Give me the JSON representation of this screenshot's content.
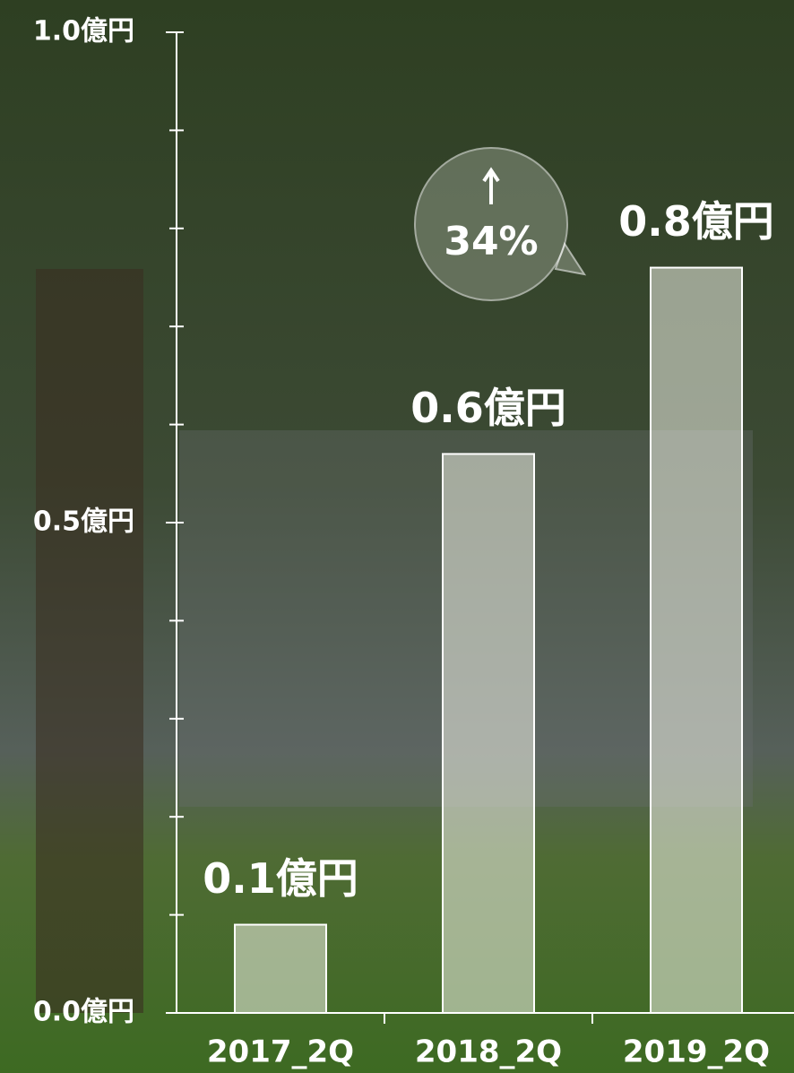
{
  "chart_data": {
    "type": "bar",
    "categories": [
      "2017_2Q",
      "2018_2Q",
      "2019_2Q"
    ],
    "values": [
      0.09,
      0.57,
      0.76
    ],
    "value_labels": [
      "0.1億円",
      "0.6億円",
      "0.8億円"
    ],
    "color": "#eef0e6",
    "ylim": [
      0,
      1.0
    ],
    "yticks": [
      {
        "value": 0,
        "label": "0.0億円"
      },
      {
        "value": 0.5,
        "label": "0.5億円"
      },
      {
        "value": 1.0,
        "label": "1.0億円"
      }
    ],
    "minor_yticks": [
      0.1,
      0.2,
      0.3,
      0.4,
      0.6,
      0.7,
      0.8,
      0.9
    ],
    "annotation": "34%"
  }
}
